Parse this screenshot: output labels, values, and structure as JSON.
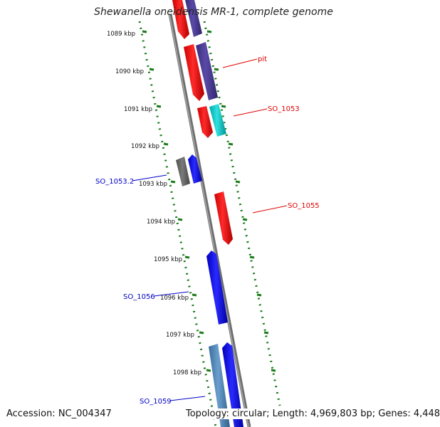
{
  "title": "Shewanella oneidensis MR-1, complete genome",
  "footer": {
    "accession": "Accession: NC_004347",
    "topology": "Topology: circular; Length: 4,969,803 bp; Genes: 4,448"
  },
  "tick_labels": [
    "1089 kbp",
    "1090 kbp",
    "1091 kbp",
    "1092 kbp",
    "1093 kbp",
    "1094 kbp",
    "1095 kbp",
    "1096 kbp",
    "1097 kbp",
    "1098 kbp"
  ],
  "gene_labels": [
    {
      "text": "pit",
      "color": "#e00000"
    },
    {
      "text": "SO_1053",
      "color": "#e00000"
    },
    {
      "text": "SO_1053.2",
      "color": "#0000c8"
    },
    {
      "text": "SO_1055",
      "color": "#e00000"
    },
    {
      "text": "SO_1056",
      "color": "#0000c8"
    },
    {
      "text": "SO_1059",
      "color": "#0000c8"
    }
  ],
  "colors": {
    "ruler_dots": "#1a7a1a",
    "backbone": "#808080",
    "gene_red": "#ff0000",
    "gene_blue": "#0000ff",
    "gene_purple": "#4b3c96",
    "gene_cyan": "#00c8c8",
    "gene_gray": "#646464",
    "gene_steel": "#4682b4"
  }
}
